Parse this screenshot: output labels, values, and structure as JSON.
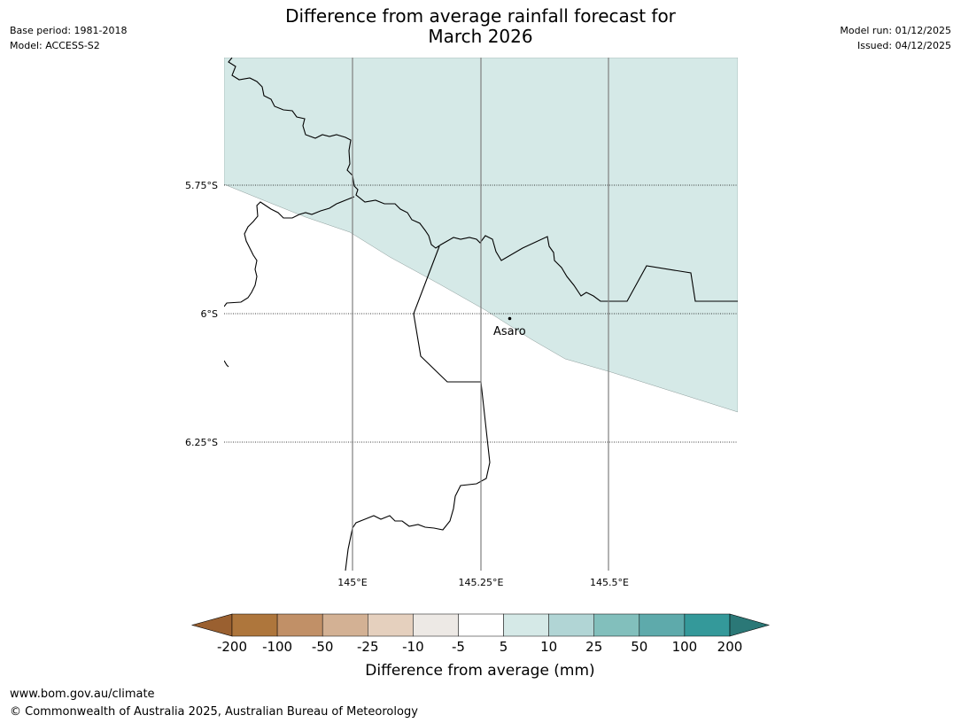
{
  "header": {
    "base_period": "Base period: 1981-2018",
    "model": "Model: ACCESS-S2",
    "model_run": "Model run: 01/12/2025",
    "issued": "Issued: 04/12/2025",
    "title_line1": "Difference from average rainfall forecast for",
    "title_line2": "March 2026"
  },
  "map": {
    "lat_labels": [
      "5.75°S",
      "6°S",
      "6.25°S"
    ],
    "lon_labels": [
      "145°E",
      "145.25°E",
      "145.5°E"
    ],
    "town": "Asaro",
    "shaded_category_color": "#d5e9e7"
  },
  "legend": {
    "title": "Difference from average (mm)",
    "bounds": [
      "-200",
      "-100",
      "-50",
      "-25",
      "-10",
      "-5",
      "5",
      "10",
      "25",
      "50",
      "100",
      "200"
    ],
    "colors": [
      "#9a6030",
      "#ae763c",
      "#c19067",
      "#d3b194",
      "#e5d0be",
      "#ede9e5",
      "#ffffff",
      "#d5e9e7",
      "#b1d5d5",
      "#82bfbc",
      "#5eaaab",
      "#34999a",
      "#2b7877"
    ]
  },
  "footer": {
    "url": "www.bom.gov.au/climate",
    "copyright": "© Commonwealth of Australia 2025, Australian Bureau of Meteorology"
  }
}
